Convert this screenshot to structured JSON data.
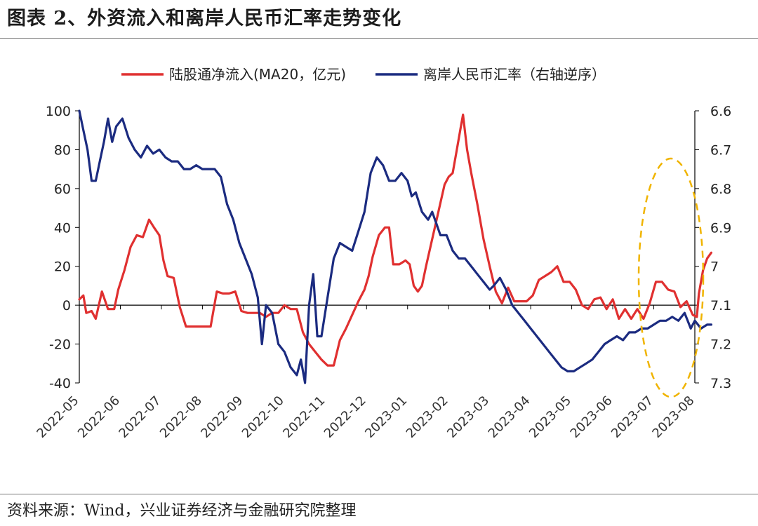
{
  "figure": {
    "title": "图表 2、外资流入和离岸人民币汇率走势变化",
    "source": "资料来源：Wind，兴业证券经济与金融研究院整理"
  },
  "chart_data": {
    "type": "line",
    "legend_position": "top-center",
    "grid": false,
    "x_categories": [
      "2022-05",
      "2022-06",
      "2022-07",
      "2022-08",
      "2022-09",
      "2022-10",
      "2022-11",
      "2022-12",
      "2023-01",
      "2023-02",
      "2023-03",
      "2023-04",
      "2023-05",
      "2023-06",
      "2023-07",
      "2023-08"
    ],
    "y_left": {
      "min": -40,
      "max": 100,
      "ticks": [
        100,
        80,
        60,
        40,
        20,
        0,
        -20,
        -40
      ]
    },
    "y_right": {
      "min": 6.6,
      "max": 7.3,
      "reversed": true,
      "ticks": [
        6.6,
        6.7,
        6.8,
        6.9,
        7,
        7.1,
        7.2,
        7.3
      ],
      "tick_labels": [
        "6.6",
        "6.7",
        "6.8",
        "6.9",
        "7",
        "7.1",
        "7.2",
        "7.3"
      ]
    },
    "series": [
      {
        "name": "陆股通净流入(MA20，亿元)",
        "axis": "left",
        "color": "#e03030",
        "points": [
          [
            0,
            3
          ],
          [
            0.1,
            5
          ],
          [
            0.17,
            -4
          ],
          [
            0.3,
            -3
          ],
          [
            0.4,
            -7
          ],
          [
            0.55,
            7
          ],
          [
            0.7,
            -2
          ],
          [
            0.85,
            -2
          ],
          [
            0.95,
            8
          ],
          [
            1.1,
            18
          ],
          [
            1.25,
            30
          ],
          [
            1.4,
            36
          ],
          [
            1.55,
            35
          ],
          [
            1.7,
            44
          ],
          [
            1.82,
            40
          ],
          [
            1.95,
            36
          ],
          [
            2.05,
            23
          ],
          [
            2.15,
            15
          ],
          [
            2.3,
            14
          ],
          [
            2.45,
            -1
          ],
          [
            2.6,
            -11
          ],
          [
            2.75,
            -11
          ],
          [
            2.9,
            -11
          ],
          [
            3.05,
            -11
          ],
          [
            3.2,
            -11
          ],
          [
            3.35,
            7
          ],
          [
            3.5,
            6
          ],
          [
            3.65,
            6
          ],
          [
            3.8,
            7
          ],
          [
            3.95,
            -3
          ],
          [
            4.1,
            -4
          ],
          [
            4.25,
            -4
          ],
          [
            4.4,
            -4
          ],
          [
            4.55,
            -6
          ],
          [
            4.7,
            -4
          ],
          [
            4.85,
            -4
          ],
          [
            5.0,
            0
          ],
          [
            5.15,
            -2
          ],
          [
            5.3,
            -2
          ],
          [
            5.45,
            -14
          ],
          [
            5.6,
            -20
          ],
          [
            5.75,
            -24
          ],
          [
            5.9,
            -28
          ],
          [
            6.05,
            -31
          ],
          [
            6.2,
            -31
          ],
          [
            6.35,
            -18
          ],
          [
            6.5,
            -12
          ],
          [
            6.65,
            -5
          ],
          [
            6.8,
            2
          ],
          [
            6.95,
            8
          ],
          [
            7.05,
            15
          ],
          [
            7.15,
            25
          ],
          [
            7.3,
            36
          ],
          [
            7.45,
            40
          ],
          [
            7.55,
            40
          ],
          [
            7.65,
            21
          ],
          [
            7.8,
            21
          ],
          [
            7.95,
            23
          ],
          [
            8.05,
            21
          ],
          [
            8.15,
            10
          ],
          [
            8.25,
            7
          ],
          [
            8.35,
            10
          ],
          [
            8.45,
            20
          ],
          [
            8.6,
            34
          ],
          [
            8.75,
            48
          ],
          [
            8.9,
            62
          ],
          [
            9.0,
            66
          ],
          [
            9.1,
            68
          ],
          [
            9.2,
            80
          ],
          [
            9.3,
            92
          ],
          [
            9.35,
            98
          ],
          [
            9.45,
            80
          ],
          [
            9.55,
            68
          ],
          [
            9.7,
            52
          ],
          [
            9.85,
            34
          ],
          [
            10.0,
            20
          ],
          [
            10.15,
            7
          ],
          [
            10.3,
            1
          ],
          [
            10.45,
            9
          ],
          [
            10.6,
            2
          ],
          [
            10.75,
            2
          ],
          [
            10.9,
            2
          ],
          [
            11.05,
            5
          ],
          [
            11.2,
            13
          ],
          [
            11.35,
            15
          ],
          [
            11.5,
            17
          ],
          [
            11.65,
            20
          ],
          [
            11.8,
            12
          ],
          [
            11.95,
            12
          ],
          [
            12.1,
            8
          ],
          [
            12.25,
            0
          ],
          [
            12.4,
            -2
          ],
          [
            12.55,
            3
          ],
          [
            12.7,
            4
          ],
          [
            12.85,
            -2
          ],
          [
            13.0,
            3
          ],
          [
            13.15,
            -7
          ],
          [
            13.3,
            -2
          ],
          [
            13.45,
            -7
          ],
          [
            13.6,
            -2
          ],
          [
            13.75,
            -7
          ],
          [
            13.9,
            1
          ],
          [
            14.05,
            12
          ],
          [
            14.2,
            12
          ],
          [
            14.35,
            8
          ],
          [
            14.5,
            7
          ],
          [
            14.65,
            -1
          ],
          [
            14.8,
            2
          ],
          [
            14.95,
            -5
          ],
          [
            15.05,
            -6
          ],
          [
            15.1,
            6
          ],
          [
            15.2,
            18
          ],
          [
            15.3,
            24
          ],
          [
            15.4,
            27
          ]
        ]
      },
      {
        "name": "离岸人民币汇率（右轴逆序）",
        "axis": "right",
        "color": "#1b2b80",
        "points": [
          [
            0,
            6.6
          ],
          [
            0.1,
            6.65
          ],
          [
            0.2,
            6.7
          ],
          [
            0.3,
            6.78
          ],
          [
            0.4,
            6.78
          ],
          [
            0.5,
            6.73
          ],
          [
            0.6,
            6.68
          ],
          [
            0.7,
            6.62
          ],
          [
            0.8,
            6.68
          ],
          [
            0.9,
            6.64
          ],
          [
            1.05,
            6.62
          ],
          [
            1.2,
            6.67
          ],
          [
            1.35,
            6.7
          ],
          [
            1.5,
            6.72
          ],
          [
            1.65,
            6.69
          ],
          [
            1.8,
            6.71
          ],
          [
            1.95,
            6.7
          ],
          [
            2.1,
            6.72
          ],
          [
            2.25,
            6.73
          ],
          [
            2.4,
            6.73
          ],
          [
            2.55,
            6.75
          ],
          [
            2.7,
            6.75
          ],
          [
            2.85,
            6.74
          ],
          [
            3.0,
            6.75
          ],
          [
            3.15,
            6.75
          ],
          [
            3.3,
            6.75
          ],
          [
            3.45,
            6.77
          ],
          [
            3.6,
            6.84
          ],
          [
            3.75,
            6.88
          ],
          [
            3.9,
            6.94
          ],
          [
            4.05,
            6.98
          ],
          [
            4.2,
            7.02
          ],
          [
            4.35,
            7.08
          ],
          [
            4.45,
            7.2
          ],
          [
            4.55,
            7.1
          ],
          [
            4.7,
            7.12
          ],
          [
            4.85,
            7.2
          ],
          [
            5.0,
            7.22
          ],
          [
            5.15,
            7.26
          ],
          [
            5.3,
            7.28
          ],
          [
            5.4,
            7.24
          ],
          [
            5.5,
            7.3
          ],
          [
            5.6,
            7.1
          ],
          [
            5.7,
            7.02
          ],
          [
            5.8,
            7.18
          ],
          [
            5.9,
            7.18
          ],
          [
            6.05,
            7.08
          ],
          [
            6.2,
            6.98
          ],
          [
            6.35,
            6.94
          ],
          [
            6.5,
            6.95
          ],
          [
            6.65,
            6.96
          ],
          [
            6.8,
            6.91
          ],
          [
            6.95,
            6.86
          ],
          [
            7.1,
            6.76
          ],
          [
            7.25,
            6.72
          ],
          [
            7.4,
            6.74
          ],
          [
            7.55,
            6.78
          ],
          [
            7.7,
            6.78
          ],
          [
            7.85,
            6.76
          ],
          [
            8.0,
            6.78
          ],
          [
            8.1,
            6.82
          ],
          [
            8.2,
            6.81
          ],
          [
            8.35,
            6.86
          ],
          [
            8.5,
            6.88
          ],
          [
            8.6,
            6.86
          ],
          [
            8.7,
            6.89
          ],
          [
            8.8,
            6.92
          ],
          [
            8.95,
            6.92
          ],
          [
            9.1,
            6.96
          ],
          [
            9.25,
            6.98
          ],
          [
            9.4,
            6.98
          ],
          [
            9.55,
            7.0
          ],
          [
            9.7,
            7.02
          ],
          [
            9.85,
            7.04
          ],
          [
            10.0,
            7.06
          ],
          [
            10.1,
            7.05
          ],
          [
            10.25,
            7.03
          ],
          [
            10.4,
            7.06
          ],
          [
            10.55,
            7.1
          ],
          [
            10.7,
            7.12
          ],
          [
            10.85,
            7.14
          ],
          [
            11.0,
            7.16
          ],
          [
            11.15,
            7.18
          ],
          [
            11.3,
            7.2
          ],
          [
            11.45,
            7.22
          ],
          [
            11.6,
            7.24
          ],
          [
            11.75,
            7.26
          ],
          [
            11.9,
            7.27
          ],
          [
            12.05,
            7.27
          ],
          [
            12.2,
            7.26
          ],
          [
            12.35,
            7.25
          ],
          [
            12.5,
            7.24
          ],
          [
            12.65,
            7.22
          ],
          [
            12.8,
            7.2
          ],
          [
            12.95,
            7.19
          ],
          [
            13.1,
            7.18
          ],
          [
            13.25,
            7.19
          ],
          [
            13.4,
            7.17
          ],
          [
            13.55,
            7.17
          ],
          [
            13.7,
            7.16
          ],
          [
            13.85,
            7.16
          ],
          [
            14.0,
            7.15
          ],
          [
            14.15,
            7.14
          ],
          [
            14.3,
            7.14
          ],
          [
            14.45,
            7.13
          ],
          [
            14.6,
            7.14
          ],
          [
            14.75,
            7.12
          ],
          [
            14.9,
            7.16
          ],
          [
            15.0,
            7.14
          ],
          [
            15.15,
            7.16
          ],
          [
            15.3,
            7.15
          ],
          [
            15.4,
            7.15
          ]
        ]
      }
    ]
  }
}
